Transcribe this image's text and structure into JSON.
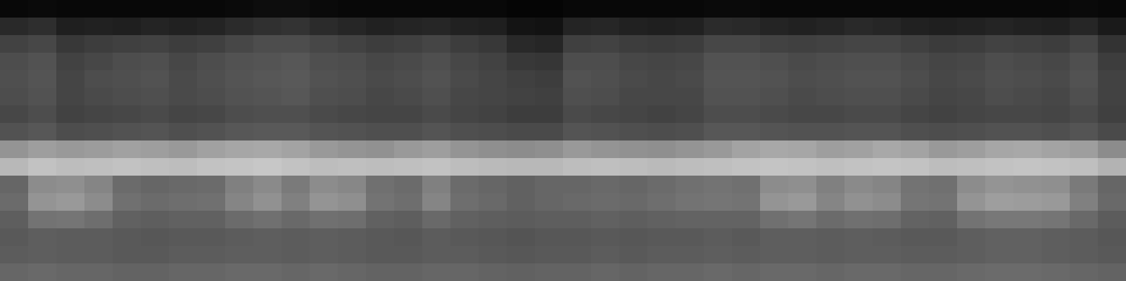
{
  "chart_data": {
    "type": "heatmap",
    "tick_labels": false,
    "zlim": [
      0,
      1
    ],
    "values": [
      [
        0.03,
        0.04,
        0.03,
        0.03,
        0.03,
        0.03,
        0.03,
        0.03,
        0.04,
        0.05,
        0.05,
        0.04,
        0.03,
        0.03,
        0.03,
        0.03,
        0.03,
        0.03,
        0.02,
        0.02,
        0.03,
        0.03,
        0.03,
        0.03,
        0.03,
        0.04,
        0.04,
        0.03,
        0.03,
        0.03,
        0.03,
        0.03,
        0.03,
        0.03,
        0.03,
        0.03,
        0.03,
        0.03,
        0.04,
        0.03
      ],
      [
        0.16,
        0.18,
        0.12,
        0.13,
        0.12,
        0.14,
        0.13,
        0.14,
        0.17,
        0.19,
        0.2,
        0.17,
        0.15,
        0.13,
        0.14,
        0.15,
        0.13,
        0.12,
        0.08,
        0.07,
        0.14,
        0.15,
        0.13,
        0.12,
        0.13,
        0.17,
        0.16,
        0.14,
        0.13,
        0.14,
        0.16,
        0.15,
        0.13,
        0.12,
        0.13,
        0.14,
        0.13,
        0.12,
        0.15,
        0.1
      ],
      [
        0.26,
        0.28,
        0.22,
        0.24,
        0.25,
        0.26,
        0.24,
        0.25,
        0.28,
        0.3,
        0.3,
        0.28,
        0.26,
        0.24,
        0.25,
        0.27,
        0.24,
        0.22,
        0.16,
        0.15,
        0.25,
        0.26,
        0.24,
        0.23,
        0.24,
        0.28,
        0.28,
        0.26,
        0.25,
        0.26,
        0.27,
        0.27,
        0.25,
        0.23,
        0.24,
        0.26,
        0.25,
        0.24,
        0.27,
        0.2
      ],
      [
        0.3,
        0.32,
        0.26,
        0.28,
        0.3,
        0.31,
        0.28,
        0.3,
        0.32,
        0.33,
        0.34,
        0.31,
        0.3,
        0.28,
        0.29,
        0.31,
        0.28,
        0.26,
        0.22,
        0.21,
        0.3,
        0.3,
        0.28,
        0.27,
        0.28,
        0.32,
        0.32,
        0.31,
        0.29,
        0.3,
        0.31,
        0.31,
        0.29,
        0.27,
        0.28,
        0.3,
        0.29,
        0.28,
        0.31,
        0.24
      ],
      [
        0.31,
        0.33,
        0.27,
        0.3,
        0.31,
        0.32,
        0.29,
        0.31,
        0.33,
        0.34,
        0.35,
        0.32,
        0.31,
        0.29,
        0.3,
        0.32,
        0.29,
        0.27,
        0.25,
        0.24,
        0.32,
        0.31,
        0.29,
        0.28,
        0.29,
        0.33,
        0.33,
        0.32,
        0.3,
        0.31,
        0.32,
        0.32,
        0.3,
        0.28,
        0.29,
        0.31,
        0.3,
        0.29,
        0.32,
        0.26
      ],
      [
        0.3,
        0.32,
        0.27,
        0.29,
        0.3,
        0.31,
        0.29,
        0.3,
        0.32,
        0.33,
        0.34,
        0.31,
        0.3,
        0.28,
        0.29,
        0.31,
        0.28,
        0.27,
        0.26,
        0.25,
        0.31,
        0.3,
        0.28,
        0.28,
        0.28,
        0.32,
        0.32,
        0.31,
        0.29,
        0.3,
        0.31,
        0.31,
        0.29,
        0.27,
        0.28,
        0.3,
        0.29,
        0.28,
        0.31,
        0.26
      ],
      [
        0.28,
        0.3,
        0.26,
        0.27,
        0.28,
        0.29,
        0.27,
        0.28,
        0.3,
        0.31,
        0.31,
        0.29,
        0.28,
        0.27,
        0.27,
        0.29,
        0.27,
        0.26,
        0.24,
        0.24,
        0.29,
        0.28,
        0.27,
        0.26,
        0.27,
        0.3,
        0.3,
        0.29,
        0.28,
        0.28,
        0.29,
        0.29,
        0.27,
        0.26,
        0.27,
        0.28,
        0.28,
        0.27,
        0.29,
        0.25
      ],
      [
        0.32,
        0.34,
        0.3,
        0.31,
        0.32,
        0.33,
        0.31,
        0.32,
        0.34,
        0.35,
        0.35,
        0.33,
        0.32,
        0.31,
        0.31,
        0.33,
        0.31,
        0.3,
        0.29,
        0.29,
        0.33,
        0.32,
        0.31,
        0.3,
        0.31,
        0.34,
        0.34,
        0.33,
        0.32,
        0.32,
        0.33,
        0.33,
        0.31,
        0.3,
        0.31,
        0.32,
        0.32,
        0.31,
        0.33,
        0.29
      ],
      [
        0.58,
        0.62,
        0.6,
        0.61,
        0.63,
        0.62,
        0.6,
        0.63,
        0.65,
        0.66,
        0.64,
        0.6,
        0.58,
        0.57,
        0.6,
        0.62,
        0.58,
        0.56,
        0.55,
        0.56,
        0.6,
        0.58,
        0.57,
        0.56,
        0.58,
        0.6,
        0.64,
        0.66,
        0.65,
        0.62,
        0.63,
        0.66,
        0.64,
        0.6,
        0.62,
        0.65,
        0.66,
        0.64,
        0.62,
        0.55
      ],
      [
        0.72,
        0.76,
        0.74,
        0.75,
        0.76,
        0.75,
        0.74,
        0.76,
        0.77,
        0.78,
        0.76,
        0.74,
        0.75,
        0.74,
        0.75,
        0.76,
        0.74,
        0.73,
        0.72,
        0.72,
        0.74,
        0.75,
        0.74,
        0.73,
        0.74,
        0.75,
        0.76,
        0.77,
        0.76,
        0.75,
        0.76,
        0.77,
        0.76,
        0.74,
        0.75,
        0.76,
        0.77,
        0.76,
        0.75,
        0.7
      ],
      [
        0.4,
        0.55,
        0.56,
        0.52,
        0.42,
        0.4,
        0.41,
        0.42,
        0.5,
        0.54,
        0.48,
        0.55,
        0.53,
        0.44,
        0.42,
        0.5,
        0.42,
        0.4,
        0.38,
        0.4,
        0.4,
        0.41,
        0.4,
        0.42,
        0.44,
        0.45,
        0.44,
        0.55,
        0.56,
        0.5,
        0.54,
        0.52,
        0.45,
        0.44,
        0.55,
        0.58,
        0.57,
        0.56,
        0.48,
        0.4
      ],
      [
        0.42,
        0.58,
        0.6,
        0.55,
        0.44,
        0.42,
        0.43,
        0.44,
        0.52,
        0.57,
        0.5,
        0.58,
        0.56,
        0.45,
        0.43,
        0.52,
        0.43,
        0.41,
        0.38,
        0.4,
        0.41,
        0.42,
        0.41,
        0.43,
        0.45,
        0.46,
        0.45,
        0.58,
        0.6,
        0.52,
        0.57,
        0.55,
        0.46,
        0.45,
        0.58,
        0.62,
        0.61,
        0.6,
        0.5,
        0.41
      ],
      [
        0.37,
        0.45,
        0.46,
        0.43,
        0.38,
        0.37,
        0.38,
        0.38,
        0.42,
        0.44,
        0.41,
        0.44,
        0.43,
        0.38,
        0.37,
        0.41,
        0.38,
        0.37,
        0.36,
        0.37,
        0.37,
        0.38,
        0.37,
        0.38,
        0.39,
        0.39,
        0.39,
        0.44,
        0.46,
        0.42,
        0.44,
        0.43,
        0.39,
        0.38,
        0.45,
        0.47,
        0.47,
        0.46,
        0.41,
        0.36
      ],
      [
        0.35,
        0.37,
        0.36,
        0.36,
        0.35,
        0.34,
        0.35,
        0.35,
        0.36,
        0.37,
        0.36,
        0.37,
        0.36,
        0.35,
        0.34,
        0.36,
        0.35,
        0.34,
        0.33,
        0.34,
        0.34,
        0.35,
        0.34,
        0.35,
        0.35,
        0.36,
        0.35,
        0.37,
        0.37,
        0.36,
        0.37,
        0.36,
        0.35,
        0.35,
        0.37,
        0.38,
        0.38,
        0.37,
        0.36,
        0.34
      ],
      [
        0.36,
        0.37,
        0.36,
        0.36,
        0.35,
        0.35,
        0.36,
        0.36,
        0.37,
        0.37,
        0.36,
        0.37,
        0.36,
        0.35,
        0.35,
        0.36,
        0.36,
        0.35,
        0.34,
        0.35,
        0.35,
        0.36,
        0.35,
        0.36,
        0.36,
        0.37,
        0.36,
        0.37,
        0.37,
        0.36,
        0.37,
        0.37,
        0.36,
        0.36,
        0.37,
        0.38,
        0.38,
        0.37,
        0.36,
        0.35
      ],
      [
        0.4,
        0.41,
        0.4,
        0.4,
        0.39,
        0.39,
        0.4,
        0.4,
        0.41,
        0.41,
        0.4,
        0.41,
        0.4,
        0.39,
        0.39,
        0.4,
        0.4,
        0.39,
        0.38,
        0.39,
        0.39,
        0.4,
        0.39,
        0.4,
        0.4,
        0.41,
        0.4,
        0.41,
        0.41,
        0.4,
        0.41,
        0.41,
        0.4,
        0.4,
        0.41,
        0.42,
        0.42,
        0.41,
        0.4,
        0.39
      ]
    ]
  }
}
